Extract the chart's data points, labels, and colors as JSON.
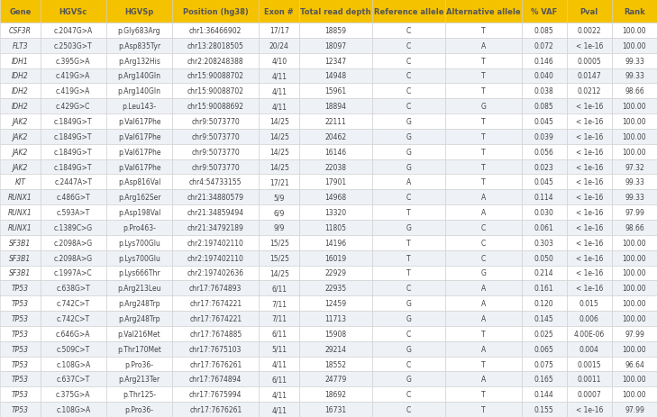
{
  "columns": [
    "Gene",
    "HGVSc",
    "HGVSp",
    "Position (hg38)",
    "Exon #",
    "Total read depth",
    "Reference allele",
    "Alternative allele",
    "% VAF",
    "Pval",
    "Rank"
  ],
  "col_widths": [
    0.58,
    0.95,
    0.95,
    1.25,
    0.58,
    1.05,
    1.05,
    1.1,
    0.65,
    0.65,
    0.65
  ],
  "header_bg": "#F5C200",
  "header_text": "#555555",
  "row_bg_even": "#FFFFFF",
  "row_bg_odd": "#EEF2F7",
  "border_color": "#CCCCCC",
  "text_color": "#444444",
  "rows": [
    [
      "CSF3R",
      "c.2047G>A",
      "p.Gly683Arg",
      "chr1:36466902",
      "17/17",
      "18859",
      "C",
      "T",
      "0.085",
      "0.0022",
      "100.00"
    ],
    [
      "FLT3",
      "c.2503G>T",
      "p.Asp835Tyr",
      "chr13:28018505",
      "20/24",
      "18097",
      "C",
      "A",
      "0.072",
      "< 1e-16",
      "100.00"
    ],
    [
      "IDH1",
      "c.395G>A",
      "p.Arg132His",
      "chr2:208248388",
      "4/10",
      "12347",
      "C",
      "T",
      "0.146",
      "0.0005",
      "99.33"
    ],
    [
      "IDH2",
      "c.419G>A",
      "p.Arg140Gln",
      "chr15:90088702",
      "4/11",
      "14948",
      "C",
      "T",
      "0.040",
      "0.0147",
      "99.33"
    ],
    [
      "IDH2",
      "c.419G>A",
      "p.Arg140Gln",
      "chr15:90088702",
      "4/11",
      "15961",
      "C",
      "T",
      "0.038",
      "0.0212",
      "98.66"
    ],
    [
      "IDH2",
      "c.429G>C",
      "p.Leu143-",
      "chr15:90088692",
      "4/11",
      "18894",
      "C",
      "G",
      "0.085",
      "< 1e-16",
      "100.00"
    ],
    [
      "JAK2",
      "c.1849G>T",
      "p.Val617Phe",
      "chr9:5073770",
      "14/25",
      "22111",
      "G",
      "T",
      "0.045",
      "< 1e-16",
      "100.00"
    ],
    [
      "JAK2",
      "c.1849G>T",
      "p.Val617Phe",
      "chr9:5073770",
      "14/25",
      "20462",
      "G",
      "T",
      "0.039",
      "< 1e-16",
      "100.00"
    ],
    [
      "JAK2",
      "c.1849G>T",
      "p.Val617Phe",
      "chr9:5073770",
      "14/25",
      "16146",
      "G",
      "T",
      "0.056",
      "< 1e-16",
      "100.00"
    ],
    [
      "JAK2",
      "c.1849G>T",
      "p.Val617Phe",
      "chr9:5073770",
      "14/25",
      "22038",
      "G",
      "T",
      "0.023",
      "< 1e-16",
      "97.32"
    ],
    [
      "KIT",
      "c.2447A>T",
      "p.Asp816Val",
      "chr4:54733155",
      "17/21",
      "17901",
      "A",
      "T",
      "0.045",
      "< 1e-16",
      "99.33"
    ],
    [
      "RUNX1",
      "c.486G>T",
      "p.Arg162Ser",
      "chr21:34880579",
      "5/9",
      "14968",
      "C",
      "A",
      "0.114",
      "< 1e-16",
      "99.33"
    ],
    [
      "RUNX1",
      "c.593A>T",
      "p.Asp198Val",
      "chr21:34859494",
      "6/9",
      "13320",
      "T",
      "A",
      "0.030",
      "< 1e-16",
      "97.99"
    ],
    [
      "RUNX1",
      "c.1389C>G",
      "p.Pro463-",
      "chr21:34792189",
      "9/9",
      "11805",
      "G",
      "C",
      "0.061",
      "< 1e-16",
      "98.66"
    ],
    [
      "SF3B1",
      "c.2098A>G",
      "p.Lys700Glu",
      "chr2:197402110",
      "15/25",
      "14196",
      "T",
      "C",
      "0.303",
      "< 1e-16",
      "100.00"
    ],
    [
      "SF3B1",
      "c.2098A>G",
      "p.Lys700Glu",
      "chr2:197402110",
      "15/25",
      "16019",
      "T",
      "C",
      "0.050",
      "< 1e-16",
      "100.00"
    ],
    [
      "SF3B1",
      "c.1997A>C",
      "p.Lys666Thr",
      "chr2:197402636",
      "14/25",
      "22929",
      "T",
      "G",
      "0.214",
      "< 1e-16",
      "100.00"
    ],
    [
      "TP53",
      "c.638G>T",
      "p.Arg213Leu",
      "chr17:7674893",
      "6/11",
      "22935",
      "C",
      "A",
      "0.161",
      "< 1e-16",
      "100.00"
    ],
    [
      "TP53",
      "c.742C>T",
      "p.Arg248Trp",
      "chr17:7674221",
      "7/11",
      "12459",
      "G",
      "A",
      "0.120",
      "0.015",
      "100.00"
    ],
    [
      "TP53",
      "c.742C>T",
      "p.Arg248Trp",
      "chr17:7674221",
      "7/11",
      "11713",
      "G",
      "A",
      "0.145",
      "0.006",
      "100.00"
    ],
    [
      "TP53",
      "c.646G>A",
      "p.Val216Met",
      "chr17:7674885",
      "6/11",
      "15908",
      "C",
      "T",
      "0.025",
      "4.00E-06",
      "97.99"
    ],
    [
      "TP53",
      "c.509C>T",
      "p.Thr170Met",
      "chr17:7675103",
      "5/11",
      "29214",
      "G",
      "A",
      "0.065",
      "0.004",
      "100.00"
    ],
    [
      "TP53",
      "c.108G>A",
      "p.Pro36-",
      "chr17:7676261",
      "4/11",
      "18552",
      "C",
      "T",
      "0.075",
      "0.0015",
      "96.64"
    ],
    [
      "TP53",
      "c.637C>T",
      "p.Arg213Ter",
      "chr17:7674894",
      "6/11",
      "24779",
      "G",
      "A",
      "0.165",
      "0.0011",
      "100.00"
    ],
    [
      "TP53",
      "c.375G>A",
      "p.Thr125-",
      "chr17:7675994",
      "4/11",
      "18692",
      "C",
      "T",
      "0.144",
      "0.0007",
      "100.00"
    ],
    [
      "TP53",
      "c.108G>A",
      "p.Pro36-",
      "chr17:7676261",
      "4/11",
      "16731",
      "C",
      "T",
      "0.155",
      "< 1e-16",
      "97.99"
    ]
  ]
}
